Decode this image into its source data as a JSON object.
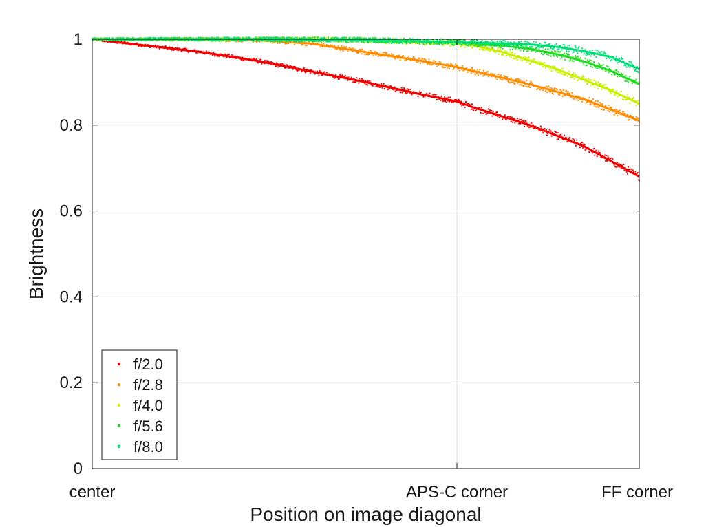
{
  "chart_data": {
    "type": "scatter",
    "title": "",
    "xlabel": "Position on image diagonal",
    "ylabel": "Brightness",
    "xlim": [
      0,
      1
    ],
    "ylim": [
      0,
      1
    ],
    "x_ticks": [
      {
        "value": 0,
        "label": "center"
      },
      {
        "value": 0.6667,
        "label": "APS-C corner"
      },
      {
        "value": 1,
        "label": "FF corner"
      }
    ],
    "y_ticks": [
      {
        "value": 0,
        "label": "0"
      },
      {
        "value": 0.2,
        "label": "0.2"
      },
      {
        "value": 0.4,
        "label": "0.4"
      },
      {
        "value": 0.6,
        "label": "0.6"
      },
      {
        "value": 0.8,
        "label": "0.8"
      },
      {
        "value": 1,
        "label": "1"
      }
    ],
    "grid": true,
    "legend_position": "bottom-left",
    "series": [
      {
        "name": "f/2.0",
        "color": "#ee0000",
        "x": [
          0,
          0.1,
          0.2,
          0.3,
          0.4,
          0.5,
          0.6,
          0.6667,
          0.7,
          0.8,
          0.9,
          1.0
        ],
        "y": [
          1.0,
          0.985,
          0.97,
          0.95,
          0.925,
          0.9,
          0.872,
          0.855,
          0.84,
          0.8,
          0.75,
          0.68
        ]
      },
      {
        "name": "f/2.8",
        "color": "#ff8c00",
        "x": [
          0,
          0.2,
          0.3,
          0.4,
          0.5,
          0.6,
          0.6667,
          0.7,
          0.8,
          0.9,
          1.0
        ],
        "y": [
          1.0,
          1.0,
          0.998,
          0.99,
          0.97,
          0.95,
          0.935,
          0.925,
          0.895,
          0.86,
          0.81
        ]
      },
      {
        "name": "f/4.0",
        "color": "#c8f000",
        "x": [
          0,
          0.3,
          0.4,
          0.5,
          0.6,
          0.6667,
          0.7,
          0.75,
          0.8,
          0.85,
          0.9,
          0.95,
          1.0
        ],
        "y": [
          1.0,
          1.0,
          1.0,
          0.998,
          0.993,
          0.99,
          0.985,
          0.97,
          0.95,
          0.93,
          0.905,
          0.88,
          0.85
        ]
      },
      {
        "name": "f/5.6",
        "color": "#22dd22",
        "x": [
          0,
          0.3,
          0.5,
          0.6,
          0.6667,
          0.7,
          0.75,
          0.8,
          0.85,
          0.9,
          0.95,
          1.0
        ],
        "y": [
          1.0,
          1.0,
          0.998,
          0.995,
          0.993,
          0.99,
          0.985,
          0.978,
          0.965,
          0.948,
          0.925,
          0.895
        ]
      },
      {
        "name": "f/8.0",
        "color": "#00dd77",
        "x": [
          0,
          0.3,
          0.5,
          0.6,
          0.6667,
          0.7,
          0.8,
          0.85,
          0.9,
          0.95,
          1.0
        ],
        "y": [
          1.0,
          1.0,
          0.998,
          0.995,
          0.993,
          0.992,
          0.988,
          0.982,
          0.972,
          0.958,
          0.93
        ]
      }
    ]
  }
}
